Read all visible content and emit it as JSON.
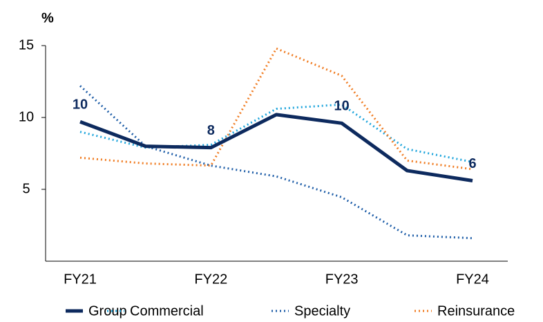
{
  "chart_data": {
    "type": "line",
    "y_label": "%",
    "categories": [
      "FY21",
      null,
      "FY22",
      null,
      "FY23",
      null,
      "FY24"
    ],
    "series": [
      {
        "name": "Group",
        "color": "#0d2a5e",
        "style": "solid",
        "values": [
          9.7,
          8.0,
          7.9,
          10.2,
          9.6,
          6.3,
          5.6
        ],
        "value_labels": [
          "10",
          null,
          "8",
          null,
          "10",
          null,
          "6"
        ]
      },
      {
        "name": "Commercial",
        "color": "#1fa5dc",
        "style": "dotted",
        "values": [
          9.0,
          7.9,
          8.1,
          10.6,
          10.9,
          7.8,
          6.9
        ]
      },
      {
        "name": "Specialty",
        "color": "#1f5ea8",
        "style": "dotted",
        "values": [
          12.2,
          8.0,
          6.65,
          5.9,
          4.45,
          1.8,
          1.6
        ]
      },
      {
        "name": "Reinsurance",
        "color": "#f07c22",
        "style": "dotted",
        "values": [
          7.2,
          6.8,
          6.65,
          14.8,
          12.9,
          7.0,
          6.4
        ]
      }
    ],
    "ylim": [
      0,
      15
    ],
    "yticks": [
      5,
      10,
      15
    ],
    "grid": false,
    "legend": "bottom"
  }
}
